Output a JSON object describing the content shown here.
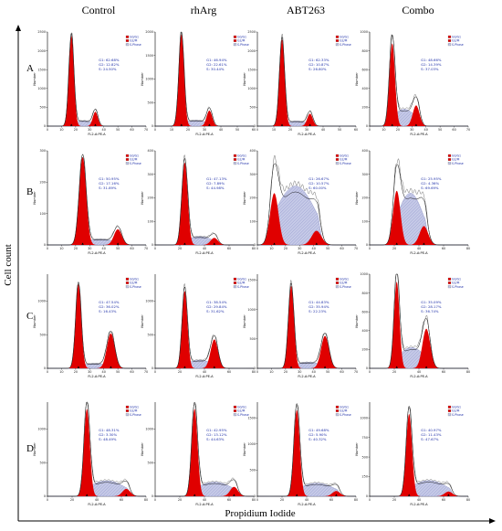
{
  "chart_data": {
    "type": "area",
    "columns": [
      "Control",
      "rhArg",
      "ABT263",
      "Combo"
    ],
    "rows": [
      "A",
      "B",
      "C",
      "D"
    ],
    "xlabel": "Propidium Iodide",
    "ylabel": "Cell count",
    "panel_xlabel": "FL2-A:PE-A",
    "panel_ylabel": "Number",
    "legend": [
      "G0/G1",
      "G2/M",
      "S-Phase"
    ],
    "colors": {
      "g1": "#e00000",
      "g2": "#e00000",
      "s": "#b8bce0",
      "outline": "#000000"
    },
    "panels": [
      {
        "row": "A",
        "col": "Control",
        "ymax": 2500,
        "xmax": 70,
        "g1_pos": 17,
        "g1_sd": 1.8,
        "g2_pos": 34,
        "g2_sd": 1.8,
        "g1_h": 2400,
        "g2_h": 380,
        "s_h": 140,
        "stats": [
          "G1: 62.68%",
          "G2: 12.82%",
          "S: 24.50%"
        ]
      },
      {
        "row": "A",
        "col": "rhArg",
        "ymax": 2000,
        "xmax": 60,
        "g1_pos": 16,
        "g1_sd": 1.6,
        "g2_pos": 33,
        "g2_sd": 1.7,
        "g1_h": 1950,
        "g2_h": 330,
        "s_h": 120,
        "stats": [
          "G1: 46.94%",
          "G2: 22.61%",
          "S: 30.44%"
        ]
      },
      {
        "row": "A",
        "col": "ABT263",
        "ymax": 2500,
        "xmax": 60,
        "g1_pos": 15,
        "g1_sd": 1.6,
        "g2_pos": 32,
        "g2_sd": 1.7,
        "g1_h": 2300,
        "g2_h": 330,
        "s_h": 130,
        "stats": [
          "G1: 62.33%",
          "G2: 10.87%",
          "S: 26.80%"
        ]
      },
      {
        "row": "A",
        "col": "Combo",
        "ymax": 1000,
        "xmax": 70,
        "g1_pos": 16,
        "g1_sd": 2.0,
        "g2_pos": 33,
        "g2_sd": 2.4,
        "g1_h": 880,
        "g2_h": 220,
        "s_h": 180,
        "stats": [
          "G1: 48.66%",
          "G2: 14.39%",
          "S: 37.03%"
        ]
      },
      {
        "row": "B",
        "col": "Control",
        "ymax": 300,
        "xmax": 70,
        "g1_pos": 25,
        "g1_sd": 2.5,
        "g2_pos": 50,
        "g2_sd": 2.8,
        "g1_h": 280,
        "g2_h": 50,
        "s_h": 18,
        "stats": [
          "G1: 50.95%",
          "G2: 17.16%",
          "S: 31.89%"
        ]
      },
      {
        "row": "B",
        "col": "rhArg",
        "ymax": 400,
        "xmax": 80,
        "g1_pos": 24,
        "g1_sd": 2.4,
        "g2_pos": 48,
        "g2_sd": 3.0,
        "g1_h": 350,
        "g2_h": 30,
        "s_h": 35,
        "stats": [
          "G1: 47.13%",
          "G2: 7.89%",
          "S: 44.98%"
        ]
      },
      {
        "row": "B",
        "col": "ABT263",
        "ymax": 400,
        "xmax": 70,
        "g1_pos": 12,
        "g1_sd": 3.0,
        "g2_pos": 42,
        "g2_sd": 3.5,
        "g1_h": 220,
        "g2_h": 60,
        "s_h": 250,
        "stats": [
          "G1: 26.67%",
          "G2: 10.57%",
          "S: 60.00%"
        ]
      },
      {
        "row": "B",
        "col": "Combo",
        "ymax": 400,
        "xmax": 80,
        "g1_pos": 22,
        "g1_sd": 3.0,
        "g2_pos": 44,
        "g2_sd": 3.5,
        "g1_h": 230,
        "g2_h": 80,
        "s_h": 220,
        "stats": [
          "G1: 25.95%",
          "G2: 4.36%",
          "S: 69.69%"
        ]
      },
      {
        "row": "C",
        "col": "Control",
        "ymax": 1400,
        "xmax": 70,
        "g1_pos": 22,
        "g1_sd": 2.0,
        "g2_pos": 45,
        "g2_sd": 2.8,
        "g1_h": 1250,
        "g2_h": 520,
        "s_h": 70,
        "stats": [
          "G1: 47.54%",
          "G2: 36.02%",
          "S: 16.43%"
        ]
      },
      {
        "row": "C",
        "col": "rhArg",
        "ymax": 1400,
        "xmax": 80,
        "g1_pos": 24,
        "g1_sd": 2.2,
        "g2_pos": 48,
        "g2_sd": 3.0,
        "g1_h": 1150,
        "g2_h": 430,
        "s_h": 120,
        "stats": [
          "G1: 38.54%",
          "G2: 29.84%",
          "S: 31.62%"
        ]
      },
      {
        "row": "C",
        "col": "ABT263",
        "ymax": 1600,
        "xmax": 70,
        "g1_pos": 24,
        "g1_sd": 2.0,
        "g2_pos": 48,
        "g2_sd": 2.8,
        "g1_h": 1400,
        "g2_h": 550,
        "s_h": 100,
        "stats": [
          "G1: 44.83%",
          "G2: 35.94%",
          "S: 22.23%"
        ]
      },
      {
        "row": "C",
        "col": "Combo",
        "ymax": 1000,
        "xmax": 80,
        "g1_pos": 22,
        "g1_sd": 2.2,
        "g2_pos": 46,
        "g2_sd": 3.2,
        "g1_h": 920,
        "g2_h": 420,
        "s_h": 220,
        "stats": [
          "G1: 35.09%",
          "G2: 28.17%",
          "S: 36.74%"
        ]
      },
      {
        "row": "D",
        "col": "Control",
        "ymax": 1400,
        "xmax": 80,
        "g1_pos": 32,
        "g1_sd": 2.4,
        "g2_pos": 64,
        "g2_sd": 3.2,
        "g1_h": 1300,
        "g2_h": 110,
        "s_h": 230,
        "stats": [
          "G1: 48.31%",
          "G2: 3.30%",
          "S: 48.49%"
        ]
      },
      {
        "row": "D",
        "col": "rhArg",
        "ymax": 1400,
        "xmax": 80,
        "g1_pos": 32,
        "g1_sd": 2.4,
        "g2_pos": 64,
        "g2_sd": 3.2,
        "g1_h": 1300,
        "g2_h": 140,
        "s_h": 210,
        "stats": [
          "G1: 42.95%",
          "G2: 13.12%",
          "S: 44.63%"
        ]
      },
      {
        "row": "D",
        "col": "ABT263",
        "ymax": 1800,
        "xmax": 80,
        "g1_pos": 32,
        "g1_sd": 2.4,
        "g2_pos": 64,
        "g2_sd": 3.2,
        "g1_h": 1650,
        "g2_h": 100,
        "s_h": 250,
        "stats": [
          "G1: 49.68%",
          "G2: 5.90%",
          "S: 40.32%"
        ]
      },
      {
        "row": "D",
        "col": "Combo",
        "ymax": 1200,
        "xmax": 80,
        "g1_pos": 32,
        "g1_sd": 2.4,
        "g2_pos": 64,
        "g2_sd": 3.2,
        "g1_h": 1050,
        "g2_h": 60,
        "s_h": 200,
        "stats": [
          "G1: 40.97%",
          "G2: 11.43%",
          "S: 47.67%"
        ]
      }
    ]
  }
}
